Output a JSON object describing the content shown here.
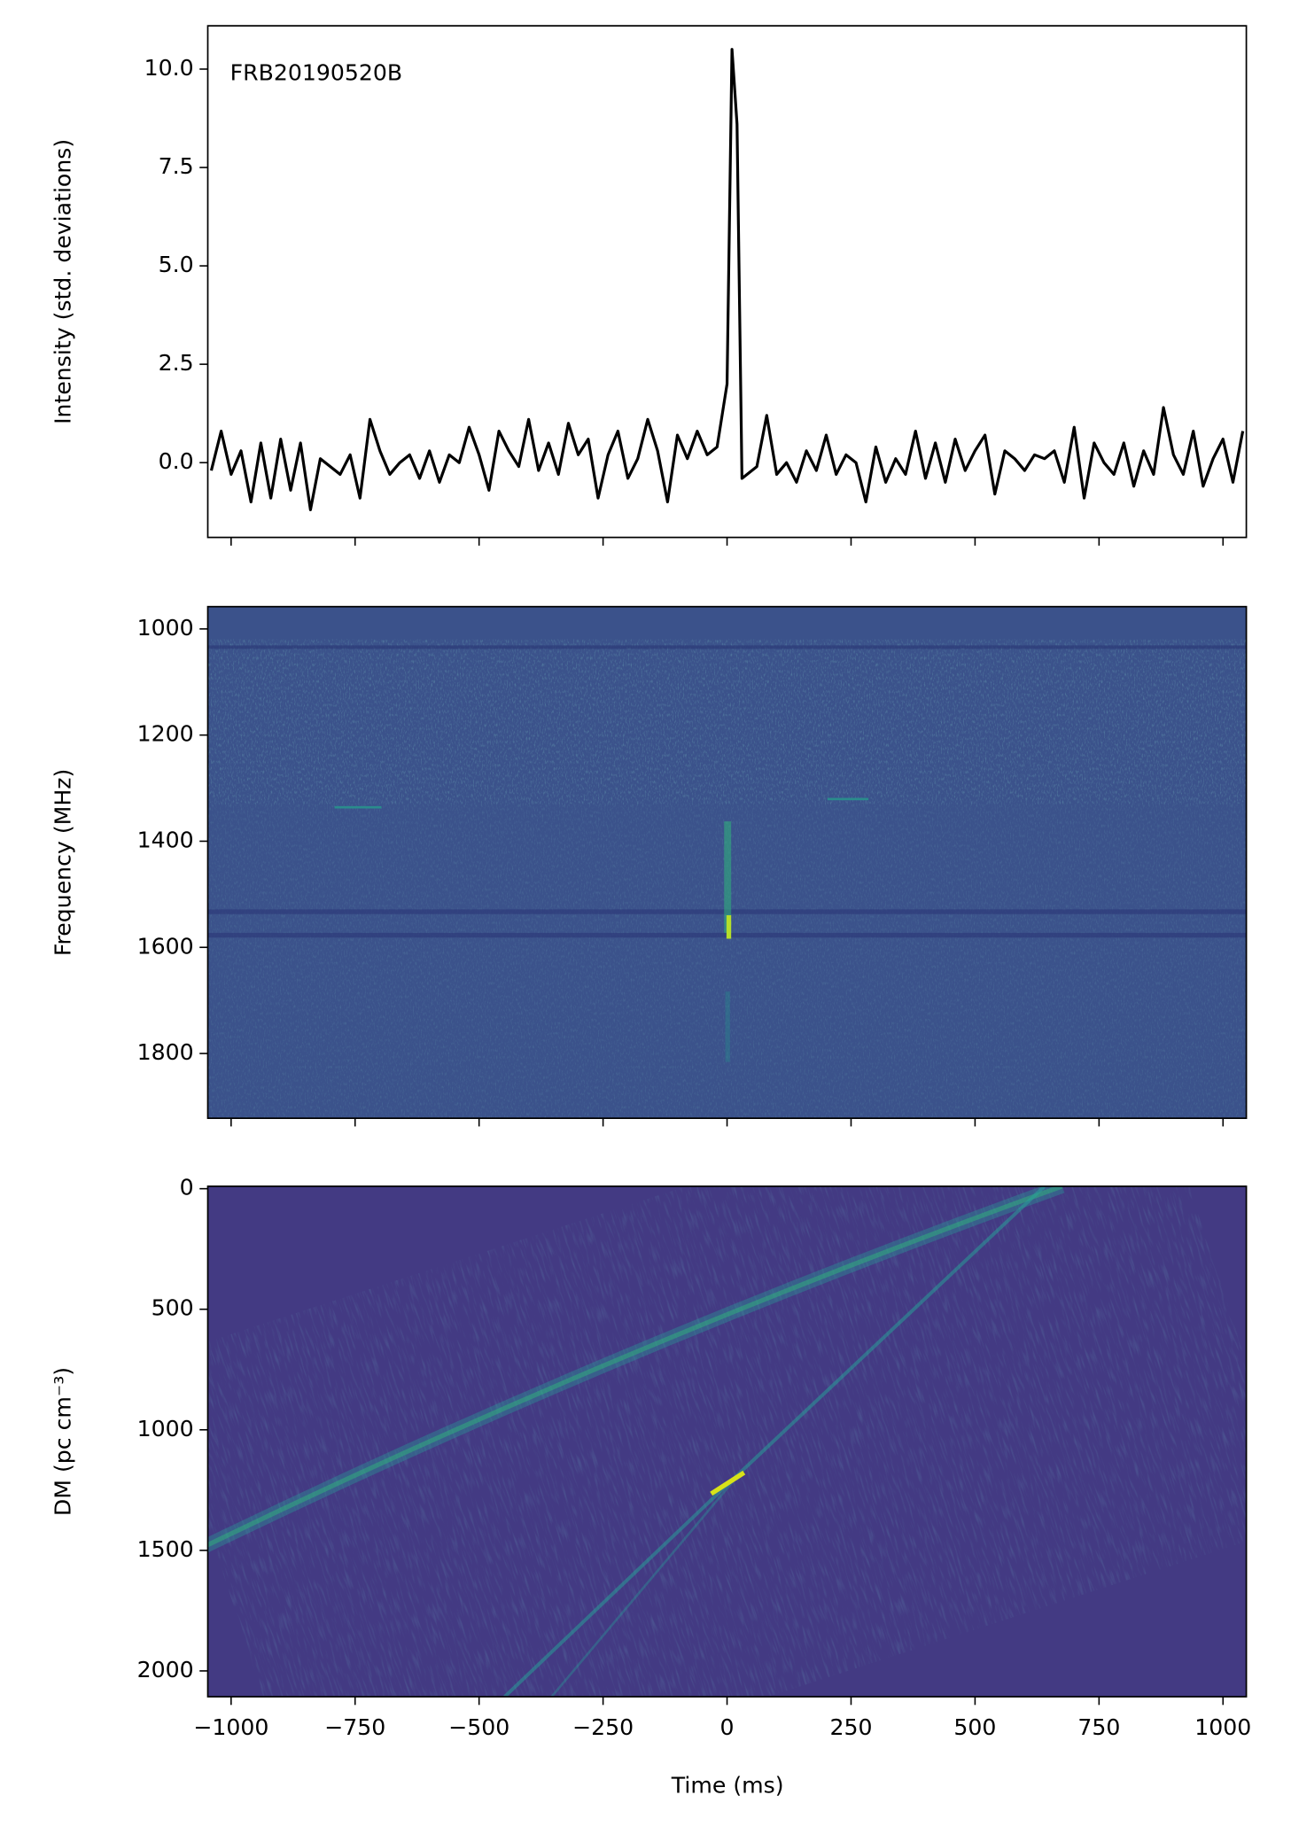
{
  "chart_data": [
    {
      "type": "line",
      "annotation": "FRB20190520B",
      "y_label": "Intensity (std. deviations)",
      "x": [
        -1040,
        -1020,
        -1000,
        -980,
        -960,
        -940,
        -920,
        -900,
        -880,
        -860,
        -840,
        -820,
        -800,
        -780,
        -760,
        -740,
        -720,
        -700,
        -680,
        -660,
        -640,
        -620,
        -600,
        -580,
        -560,
        -540,
        -520,
        -500,
        -480,
        -460,
        -440,
        -420,
        -400,
        -380,
        -360,
        -340,
        -320,
        -300,
        -280,
        -260,
        -240,
        -220,
        -200,
        -180,
        -160,
        -140,
        -120,
        -100,
        -80,
        -60,
        -40,
        -20,
        0,
        10,
        20,
        30,
        60,
        80,
        100,
        120,
        140,
        160,
        180,
        200,
        220,
        240,
        260,
        280,
        300,
        320,
        340,
        360,
        380,
        400,
        420,
        440,
        460,
        480,
        500,
        520,
        540,
        560,
        580,
        600,
        620,
        640,
        660,
        680,
        700,
        720,
        740,
        760,
        780,
        800,
        820,
        840,
        860,
        880,
        900,
        920,
        940,
        960,
        980,
        1000,
        1020,
        1040
      ],
      "series": [
        {
          "color": "#000000",
          "values": [
            -0.2,
            0.8,
            -0.3,
            0.3,
            -1.0,
            0.5,
            -0.9,
            0.6,
            -0.7,
            0.5,
            -1.2,
            0.1,
            -0.1,
            -0.3,
            0.2,
            -0.9,
            1.1,
            0.3,
            -0.3,
            0.0,
            0.2,
            -0.4,
            0.3,
            -0.5,
            0.2,
            0.0,
            0.9,
            0.2,
            -0.7,
            0.8,
            0.3,
            -0.1,
            1.1,
            -0.2,
            0.5,
            -0.3,
            1.0,
            0.2,
            0.6,
            -0.9,
            0.2,
            0.8,
            -0.4,
            0.1,
            1.1,
            0.3,
            -1.0,
            0.7,
            0.1,
            0.8,
            0.2,
            0.4,
            2.0,
            10.5,
            8.6,
            -0.4,
            -0.1,
            1.2,
            -0.3,
            0.0,
            -0.5,
            0.3,
            -0.2,
            0.7,
            -0.3,
            0.2,
            0.0,
            -1.0,
            0.4,
            -0.5,
            0.1,
            -0.3,
            0.8,
            -0.4,
            0.5,
            -0.5,
            0.6,
            -0.2,
            0.3,
            0.7,
            -0.8,
            0.3,
            0.1,
            -0.2,
            0.2,
            0.1,
            0.3,
            -0.5,
            0.9,
            -0.9,
            0.5,
            0.0,
            -0.3,
            0.5,
            -0.6,
            0.3,
            -0.3,
            1.4,
            0.2,
            -0.3,
            0.8,
            -0.6,
            0.1,
            0.6,
            -0.5,
            0.8
          ]
        }
      ],
      "xlim": [
        -1047,
        1047
      ],
      "xticks": [
        -1000,
        -750,
        -500,
        -250,
        0,
        250,
        500,
        750,
        1000
      ],
      "ylim": [
        -1.9,
        11.1
      ],
      "yticks": [
        {
          "value": 0,
          "label": "0.0"
        },
        {
          "value": 2.5,
          "label": "2.5"
        },
        {
          "value": 5,
          "label": "5.0"
        },
        {
          "value": 7.5,
          "label": "7.5"
        },
        {
          "value": 10,
          "label": "10.0"
        }
      ]
    },
    {
      "type": "heatmap",
      "y_label": "Frequency (MHz)",
      "xlim": [
        -1047,
        1047
      ],
      "xticks": [
        -1000,
        -750,
        -500,
        -250,
        0,
        250,
        500,
        750,
        1000
      ],
      "ylim": [
        1922,
        958
      ],
      "yticks": [
        1000,
        1200,
        1400,
        1600,
        1800
      ]
    },
    {
      "type": "heatmap",
      "y_label": "DM (pc cm⁻³)",
      "x_label": "Time (ms)",
      "xlim": [
        -1047,
        1047
      ],
      "xticks": [
        {
          "value": -1000,
          "label": "−1000"
        },
        {
          "value": -750,
          "label": "−750"
        },
        {
          "value": -500,
          "label": "−500"
        },
        {
          "value": -250,
          "label": "−250"
        },
        0,
        250,
        500,
        750,
        1000
      ],
      "ylim": [
        2107,
        -10
      ],
      "yticks": [
        0,
        500,
        1000,
        1500,
        2000
      ]
    }
  ]
}
